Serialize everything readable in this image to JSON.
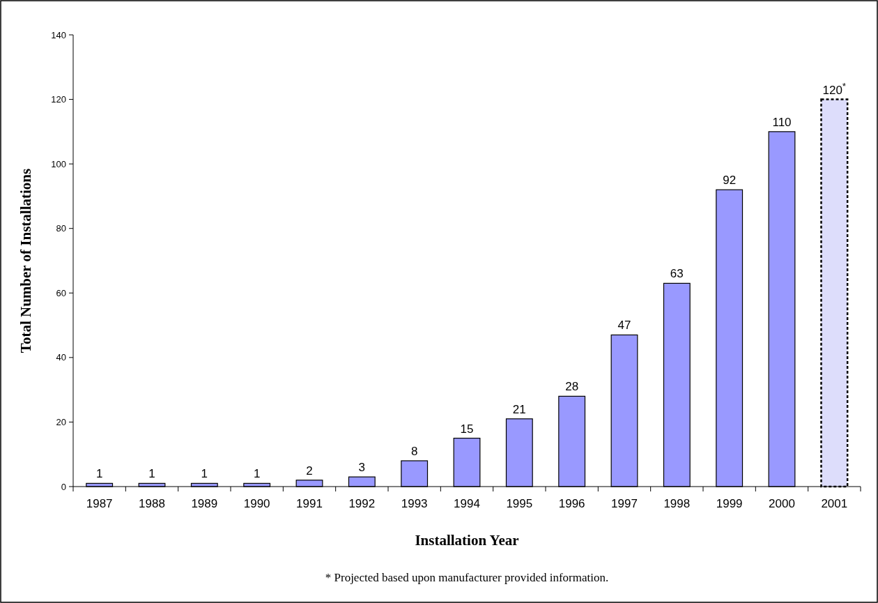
{
  "chart_data": {
    "type": "bar",
    "xlabel": "Installation Year",
    "ylabel": "Total Number of Installations",
    "categories": [
      "1987",
      "1988",
      "1989",
      "1990",
      "1991",
      "1992",
      "1993",
      "1994",
      "1995",
      "1996",
      "1997",
      "1998",
      "1999",
      "2000",
      "2001"
    ],
    "series": [
      {
        "color": "#9999ff",
        "line_style": "solid",
        "values": [
          1,
          1,
          1,
          1,
          2,
          3,
          8,
          15,
          21,
          28,
          47,
          63,
          92,
          110,
          null
        ],
        "value_labels": [
          "1",
          "1",
          "1",
          "1",
          "2",
          "3",
          "8",
          "15",
          "21",
          "28",
          "47",
          "63",
          "92",
          "110",
          null
        ]
      },
      {
        "color": "#ddddfb",
        "line_style": "dashed",
        "values": [
          null,
          null,
          null,
          null,
          null,
          null,
          null,
          null,
          null,
          null,
          null,
          null,
          null,
          null,
          120
        ],
        "value_labels": [
          null,
          null,
          null,
          null,
          null,
          null,
          null,
          null,
          null,
          null,
          null,
          null,
          null,
          null,
          "120$^{*}$"
        ]
      }
    ],
    "ylim": [
      0,
      140
    ],
    "yticks": [
      0,
      20,
      40,
      60,
      80,
      100,
      120,
      140
    ],
    "grid": false,
    "annotations": [
      "* Projected based upon manufacturer provided information."
    ]
  }
}
